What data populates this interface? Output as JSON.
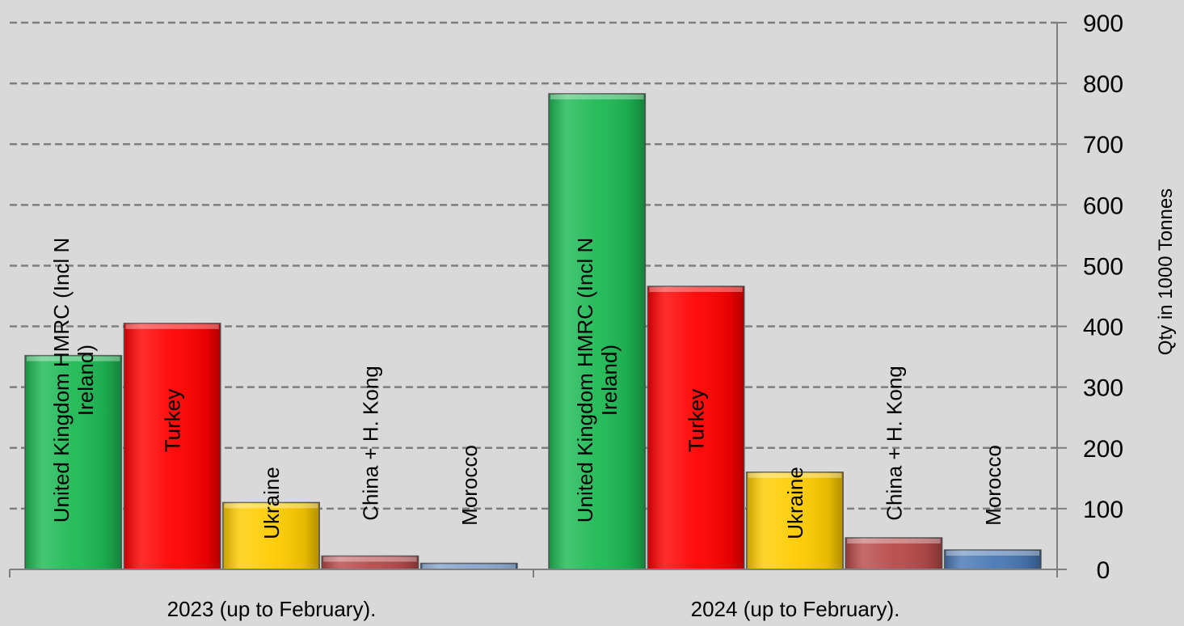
{
  "chart_data": {
    "type": "bar",
    "categories": [
      "2023 (up to February).",
      "2024 (up to February)."
    ],
    "series": [
      {
        "name": "United Kingdom HMRC (Incl N Ireland)",
        "color": "#1db954",
        "values": [
          352,
          783
        ]
      },
      {
        "name": "Turkey",
        "color": "#ff0000",
        "values": [
          405,
          466
        ]
      },
      {
        "name": "Ukraine",
        "color": "#ffcc00",
        "values": [
          110,
          160
        ]
      },
      {
        "name": "China + H. Kong",
        "color": "#b84a4a",
        "values": [
          22,
          52
        ]
      },
      {
        "name": "Morocco",
        "color": "#4a78b4",
        "values": [
          10,
          32
        ]
      }
    ],
    "bar_label_lines": [
      [
        "United Kingdom HMRC (Incl N",
        "Ireland)"
      ],
      [
        "Turkey"
      ],
      [
        "Ukraine"
      ],
      [
        "China + H. Kong"
      ],
      [
        "Morocco"
      ]
    ],
    "ylabel": "Qty in 1000 Tonnes",
    "ylim": [
      0,
      900
    ],
    "yticks": [
      0,
      100,
      200,
      300,
      400,
      500,
      600,
      700,
      800,
      900
    ],
    "y_axis_position": "right",
    "grid": true
  }
}
